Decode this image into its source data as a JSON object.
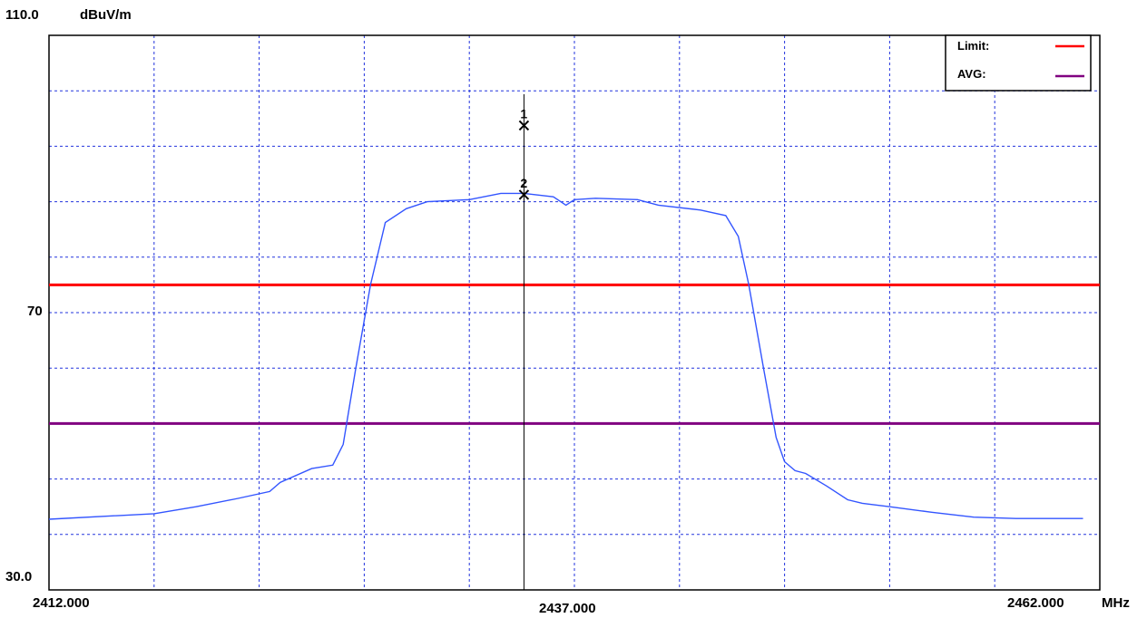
{
  "chart_data": {
    "type": "line",
    "y_unit": "dBuV/m",
    "x_unit": "MHz",
    "xlim": [
      2412.0,
      2462.0
    ],
    "ylim": [
      30.0,
      110.0
    ],
    "y_tick_labels": [
      "110.0",
      "70",
      "30.0"
    ],
    "x_tick_labels": [
      "2412.000",
      "2437.000",
      "2462.000"
    ],
    "grid": true,
    "legend_position": "top-right",
    "legend": [
      {
        "label": "Limit:",
        "color": "#ff0000"
      },
      {
        "label": "AVG:",
        "color": "#800080"
      }
    ],
    "limit_lines": [
      {
        "name": "Limit",
        "y": 74.0,
        "color": "#ff0000"
      },
      {
        "name": "AVG",
        "y": 54.0,
        "color": "#800080"
      }
    ],
    "markers": [
      {
        "label": "1",
        "x": 2434.6,
        "y": 97.0
      },
      {
        "label": "2",
        "x": 2434.6,
        "y": 87.0
      }
    ],
    "series": [
      {
        "color": "#3355ff",
        "x": [
          2412.0,
          2417.0,
          2419.0,
          2421.0,
          2422.5,
          2423.0,
          2424.5,
          2425.5,
          2426.0,
          2426.6,
          2427.3,
          2428.0,
          2429.0,
          2430.0,
          2432.0,
          2433.5,
          2434.6,
          2436.0,
          2436.6,
          2437.0,
          2438.0,
          2440.0,
          2441.0,
          2443.0,
          2444.2,
          2444.8,
          2445.3,
          2446.0,
          2446.6,
          2447.0,
          2447.5,
          2448.0,
          2449.0,
          2450.0,
          2450.7,
          2452.0,
          2454.0,
          2456.0,
          2458.0,
          2461.2
        ],
        "y": [
          40.2,
          41.0,
          42.0,
          43.2,
          44.2,
          45.5,
          47.5,
          48.0,
          51.0,
          62.0,
          74.0,
          83.0,
          85.0,
          86.0,
          86.3,
          87.2,
          87.2,
          86.7,
          85.5,
          86.3,
          86.5,
          86.3,
          85.5,
          84.8,
          84.0,
          81.0,
          74.0,
          62.0,
          52.0,
          48.5,
          47.2,
          46.8,
          45.0,
          43.0,
          42.5,
          42.0,
          41.2,
          40.5,
          40.3,
          40.3
        ]
      }
    ]
  }
}
